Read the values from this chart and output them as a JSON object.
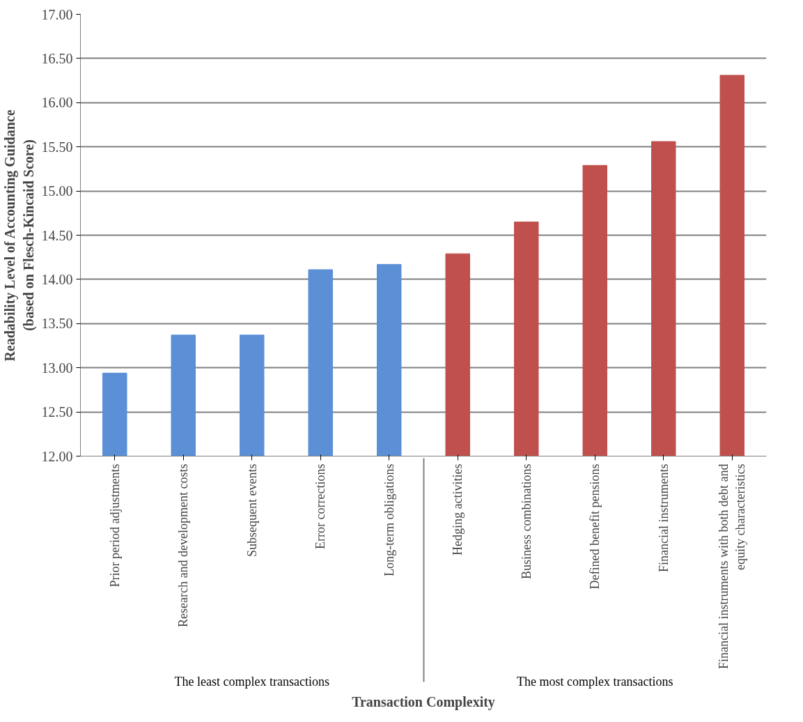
{
  "chart_data": {
    "type": "bar",
    "xlabel": "Transaction Complexity",
    "ylabel": "Readability Level of Accounting Guidance\n(based on Flesch-Kincaid Score)",
    "categories": [
      "Prior period adjustments",
      "Research and development costs",
      "Subsequent events",
      "Error corrections",
      "Long-term obligations",
      "Hedging activities",
      "Business combinations",
      "Defined benefit pensions",
      "Financial instruments",
      "Financial instruments with both debt and equity characteristics"
    ],
    "values": [
      12.94,
      13.37,
      13.37,
      14.11,
      14.17,
      14.29,
      14.65,
      15.29,
      15.56,
      16.31
    ],
    "colors": [
      "#5b8fd6",
      "#5b8fd6",
      "#5b8fd6",
      "#5b8fd6",
      "#5b8fd6",
      "#c0504d",
      "#c0504d",
      "#c0504d",
      "#c0504d",
      "#c0504d"
    ],
    "annotations": [
      "The least complex transactions",
      "The most complex transactions"
    ],
    "ylim": [
      12,
      17
    ],
    "yticks": [
      {
        "value": 12,
        "label": "12.00"
      },
      {
        "value": 12.5,
        "label": "12.50"
      },
      {
        "value": 13,
        "label": "13.00"
      },
      {
        "value": 13.5,
        "label": "13.50"
      },
      {
        "value": 14,
        "label": "14.00"
      },
      {
        "value": 14.5,
        "label": "14.50"
      },
      {
        "value": 15,
        "label": "15.00"
      },
      {
        "value": 15.5,
        "label": "15.50"
      },
      {
        "value": 16,
        "label": "16.00"
      },
      {
        "value": 16.5,
        "label": "16.50"
      },
      {
        "value": 17,
        "label": "17.00"
      }
    ],
    "grid": "y"
  }
}
